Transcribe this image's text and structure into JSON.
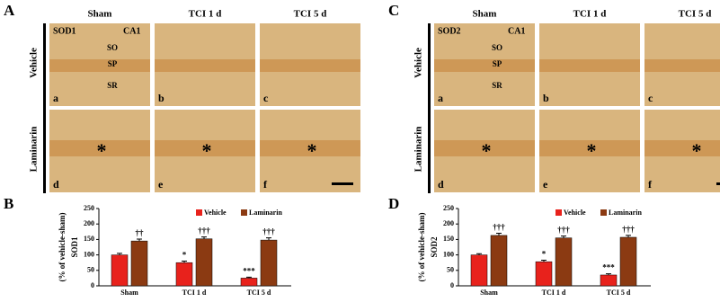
{
  "figure": {
    "panels": [
      {
        "label": "A",
        "columns": [
          "Sham",
          "TCI 1 d",
          "TCI 5 d"
        ],
        "rows": [
          "Vehicle",
          "Laminarin"
        ],
        "letters": [
          "a",
          "b",
          "c",
          "d",
          "e",
          "f"
        ],
        "marker": "SOD1",
        "region": "CA1",
        "layers": [
          "SO",
          "SP",
          "SR"
        ],
        "asterisk": "*"
      },
      {
        "label": "C",
        "columns": [
          "Sham",
          "TCI 1 d",
          "TCI 5 d"
        ],
        "rows": [
          "Vehicle",
          "Laminarin"
        ],
        "letters": [
          "a",
          "b",
          "c",
          "d",
          "e",
          "f"
        ],
        "marker": "SOD2",
        "region": "CA1",
        "layers": [
          "SO",
          "SP",
          "SR"
        ],
        "asterisk": "*"
      }
    ]
  },
  "chart_data": [
    {
      "type": "bar",
      "panel": "B",
      "ylabel": "SOD1",
      "ylabel_sub": "(% of vehicle-sham)",
      "categories": [
        "Sham",
        "TCI 1 d",
        "TCI 5 d"
      ],
      "ylim": [
        0,
        250
      ],
      "yticks": [
        0,
        50,
        100,
        150,
        200,
        250
      ],
      "legend": "top",
      "series": [
        {
          "name": "Vehicle",
          "color": "#e8221c",
          "values": [
            100,
            75,
            25
          ],
          "errors": [
            5,
            5,
            3
          ],
          "marks": [
            null,
            "*",
            "***"
          ]
        },
        {
          "name": "Laminarin",
          "color": "#8b3a12",
          "values": [
            145,
            152,
            148
          ],
          "errors": [
            6,
            6,
            7
          ],
          "marks": [
            "††",
            "†††",
            "†††"
          ]
        }
      ]
    },
    {
      "type": "bar",
      "panel": "D",
      "ylabel": "SOD2",
      "ylabel_sub": "(% of vehicle-sham)",
      "categories": [
        "Sham",
        "TCI 1 d",
        "TCI 5 d"
      ],
      "ylim": [
        0,
        250
      ],
      "yticks": [
        0,
        50,
        100,
        150,
        200,
        250
      ],
      "legend": "top",
      "series": [
        {
          "name": "Vehicle",
          "color": "#e8221c",
          "values": [
            100,
            78,
            35
          ],
          "errors": [
            4,
            5,
            4
          ],
          "marks": [
            null,
            "*",
            "***"
          ]
        },
        {
          "name": "Laminarin",
          "color": "#8b3a12",
          "values": [
            163,
            155,
            157
          ],
          "errors": [
            7,
            6,
            6
          ],
          "marks": [
            "†††",
            "†††",
            "†††"
          ]
        }
      ]
    }
  ]
}
